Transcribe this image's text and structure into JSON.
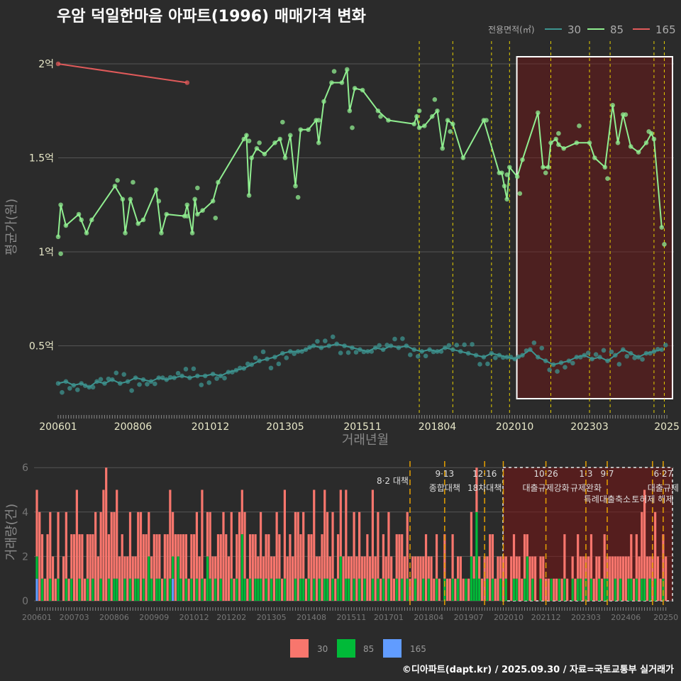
{
  "title": "우암 덕일한마음 아파트(1996) 매매가격 변화",
  "legend_title": "전용면적(㎡)",
  "footer": "©디아파트(dapt.kr) / 2025.09.30 / 자료=국토교통부 실거래가",
  "colors": {
    "s30": "#3d9490",
    "s85": "#90ee90",
    "s165": "#e05a5a",
    "bar30": "#f8766d",
    "bar85": "#00ba38",
    "bar165": "#619cff",
    "policy_top": "#e6d000",
    "policy_bottom": "#e6a000"
  },
  "chart_data": [
    {
      "type": "line",
      "title": "우암 덕일한마음 아파트(1996) 매매가격 변화",
      "xlabel": "거래년월",
      "ylabel": "평균가(원)",
      "x_note": "month index from 200601",
      "xticks": [
        {
          "i": 0,
          "label": "200601"
        },
        {
          "i": 29,
          "label": "200806"
        },
        {
          "i": 59,
          "label": "201012"
        },
        {
          "i": 88,
          "label": "201305"
        },
        {
          "i": 118,
          "label": "201511"
        },
        {
          "i": 147,
          "label": "201804"
        },
        {
          "i": 177,
          "label": "202010"
        },
        {
          "i": 206,
          "label": "202303"
        },
        {
          "i": 236,
          "label": "2025"
        }
      ],
      "yticks": [
        {
          "v": 0.5,
          "label": "0.5억"
        },
        {
          "v": 1,
          "label": "1억"
        },
        {
          "v": 1.5,
          "label": "1.5억"
        },
        {
          "v": 2,
          "label": "2억"
        }
      ],
      "ylim": [
        0.12,
        2.1
      ],
      "legend": [
        {
          "name": "30"
        },
        {
          "name": "85"
        },
        {
          "name": "165"
        }
      ],
      "series": [
        {
          "name": "165",
          "points": [
            [
              0,
              2.0
            ],
            [
              50,
              1.9
            ]
          ]
        },
        {
          "name": "85",
          "points": [
            [
              0,
              1.08
            ],
            [
              1,
              1.25
            ],
            [
              3,
              1.14
            ],
            [
              8,
              1.2
            ],
            [
              11,
              1.1
            ],
            [
              13,
              1.17
            ],
            [
              22,
              1.35
            ],
            [
              25,
              1.28
            ],
            [
              26,
              1.1
            ],
            [
              28,
              1.28
            ],
            [
              31,
              1.15
            ],
            [
              33,
              1.17
            ],
            [
              38,
              1.33
            ],
            [
              40,
              1.1
            ],
            [
              42,
              1.2
            ],
            [
              49,
              1.19
            ],
            [
              50,
              1.25
            ],
            [
              52,
              1.1
            ],
            [
              53,
              1.28
            ],
            [
              54,
              1.2
            ],
            [
              56,
              1.22
            ],
            [
              60,
              1.27
            ],
            [
              62,
              1.37
            ],
            [
              72,
              1.6
            ],
            [
              73,
              1.62
            ],
            [
              74,
              1.3
            ],
            [
              75,
              1.5
            ],
            [
              77,
              1.55
            ],
            [
              80,
              1.52
            ],
            [
              84,
              1.58
            ],
            [
              86,
              1.6
            ],
            [
              88,
              1.5
            ],
            [
              90,
              1.62
            ],
            [
              92,
              1.35
            ],
            [
              94,
              1.65
            ],
            [
              97,
              1.65
            ],
            [
              100,
              1.7
            ],
            [
              101,
              1.58
            ],
            [
              103,
              1.8
            ],
            [
              106,
              1.9
            ],
            [
              110,
              1.9
            ],
            [
              112,
              1.97
            ],
            [
              113,
              1.75
            ],
            [
              115,
              1.87
            ],
            [
              118,
              1.86
            ],
            [
              124,
              1.75
            ],
            [
              128,
              1.7
            ],
            [
              138,
              1.68
            ],
            [
              139,
              1.72
            ],
            [
              140,
              1.66
            ],
            [
              142,
              1.67
            ],
            [
              145,
              1.72
            ],
            [
              147,
              1.75
            ],
            [
              149,
              1.55
            ],
            [
              151,
              1.7
            ],
            [
              153,
              1.68
            ],
            [
              157,
              1.5
            ],
            [
              165,
              1.7
            ],
            [
              171,
              1.42
            ],
            [
              172,
              1.42
            ],
            [
              173,
              1.35
            ],
            [
              174,
              1.28
            ],
            [
              175,
              1.45
            ],
            [
              178,
              1.4
            ],
            [
              180,
              1.49
            ],
            [
              186,
              1.74
            ],
            [
              188,
              1.45
            ],
            [
              190,
              1.45
            ],
            [
              191,
              1.58
            ],
            [
              193,
              1.6
            ],
            [
              194,
              1.57
            ],
            [
              196,
              1.55
            ],
            [
              201,
              1.58
            ],
            [
              206,
              1.58
            ],
            [
              208,
              1.5
            ],
            [
              212,
              1.45
            ],
            [
              215,
              1.78
            ],
            [
              217,
              1.58
            ],
            [
              219,
              1.73
            ],
            [
              222,
              1.56
            ],
            [
              225,
              1.53
            ],
            [
              228,
              1.58
            ],
            [
              230,
              1.63
            ],
            [
              231,
              1.6
            ],
            [
              234,
              1.13
            ]
          ]
        },
        {
          "name": "30",
          "step": 3,
          "values": [
            0.3,
            0.31,
            0.29,
            0.3,
            0.28,
            0.31,
            0.3,
            0.32,
            0.3,
            0.31,
            0.33,
            0.32,
            0.31,
            0.33,
            0.32,
            0.33,
            0.34,
            0.33,
            0.34,
            0.34,
            0.35,
            0.34,
            0.36,
            0.37,
            0.38,
            0.4,
            0.42,
            0.43,
            0.44,
            0.46,
            0.47,
            0.47,
            0.48,
            0.5,
            0.49,
            0.5,
            0.51,
            0.5,
            0.49,
            0.48,
            0.47,
            0.49,
            0.48,
            0.5,
            0.49,
            0.5,
            0.48,
            0.47,
            0.48,
            0.47,
            0.49,
            0.48,
            0.47,
            0.46,
            0.45,
            0.44,
            0.46,
            0.45,
            0.44,
            0.43,
            0.45,
            0.48,
            0.44,
            0.42,
            0.4,
            0.41,
            0.42,
            0.44,
            0.45,
            0.43,
            0.44,
            0.42,
            0.45,
            0.48,
            0.46,
            0.44,
            0.46,
            0.47,
            0.48
          ]
        }
      ],
      "highlight": {
        "from": 177,
        "to": 236
      }
    },
    {
      "type": "bar",
      "ylabel": "거래량(건)",
      "stacked": true,
      "xticks": [
        {
          "i": 0,
          "label": "200601"
        },
        {
          "i": 14,
          "label": "200703"
        },
        {
          "i": 29,
          "label": "200806"
        },
        {
          "i": 44,
          "label": "200909"
        },
        {
          "i": 59,
          "label": "201012"
        },
        {
          "i": 73,
          "label": "201202"
        },
        {
          "i": 88,
          "label": "201305"
        },
        {
          "i": 103,
          "label": "201408"
        },
        {
          "i": 118,
          "label": "201511"
        },
        {
          "i": 132,
          "label": "201701"
        },
        {
          "i": 147,
          "label": "201804"
        },
        {
          "i": 162,
          "label": "201907"
        },
        {
          "i": 177,
          "label": "202010"
        },
        {
          "i": 191,
          "label": "202112"
        },
        {
          "i": 206,
          "label": "202303"
        },
        {
          "i": 221,
          "label": "202406"
        },
        {
          "i": 236,
          "label": "20250"
        }
      ],
      "yticks": [
        0,
        2,
        4,
        6
      ],
      "ylim": [
        0,
        6
      ],
      "legend": [
        {
          "name": "30"
        },
        {
          "name": "85"
        },
        {
          "name": "165"
        }
      ],
      "series": [
        {
          "name": "30",
          "values": [
            3,
            4,
            2,
            1,
            3,
            3,
            2,
            1,
            3,
            0,
            2,
            3,
            1,
            2,
            3,
            5,
            2,
            3,
            1,
            2,
            3,
            2,
            4,
            2,
            3,
            5,
            6,
            2,
            4,
            3,
            4,
            2,
            3,
            1,
            2,
            3,
            2,
            1,
            3,
            4,
            2,
            3,
            2,
            1,
            3,
            2,
            2,
            1,
            2,
            3,
            4,
            2,
            3,
            1,
            2,
            3,
            2,
            1,
            2,
            3,
            3,
            2,
            4,
            1,
            2,
            3,
            2,
            1,
            3,
            2,
            4,
            3,
            2,
            3,
            1,
            2,
            4,
            2,
            3,
            1,
            2,
            3,
            2,
            1,
            3,
            2,
            2,
            3,
            1,
            2,
            3,
            2,
            1,
            4,
            2,
            3,
            2,
            3,
            4,
            2,
            3,
            1,
            2,
            3,
            4,
            2,
            1,
            3,
            4,
            3,
            2,
            3,
            1,
            2,
            3,
            2,
            4,
            1,
            2,
            3,
            2,
            3,
            2,
            1,
            3,
            2,
            4,
            2,
            3,
            1,
            2,
            2,
            3,
            2,
            1,
            2,
            3,
            2,
            2,
            3,
            1,
            2,
            1,
            2,
            2,
            1,
            3,
            1,
            2,
            1,
            2,
            1,
            0,
            2,
            1,
            1,
            2,
            1,
            1,
            2,
            1,
            0,
            1,
            2,
            1,
            2,
            1,
            1,
            2,
            1,
            3,
            2,
            1,
            2,
            1,
            2,
            1,
            0,
            2,
            2,
            1,
            2,
            1,
            2,
            1,
            2,
            1,
            2,
            0,
            1,
            2,
            1,
            1,
            0,
            1,
            1,
            0,
            1,
            2,
            1,
            0,
            1,
            1,
            2,
            1,
            2,
            1,
            2,
            2,
            1,
            2,
            1,
            1,
            2,
            1,
            2,
            2,
            1,
            2,
            1,
            2,
            2,
            1,
            2,
            1,
            2,
            2,
            3,
            4,
            2,
            1,
            2,
            3,
            2,
            1,
            2,
            2
          ]
        },
        {
          "name": "85",
          "values": [
            1,
            0,
            1,
            0,
            0,
            1,
            0,
            0,
            1,
            0,
            0,
            1,
            0,
            1,
            0,
            0,
            1,
            0,
            0,
            1,
            0,
            1,
            0,
            0,
            1,
            0,
            0,
            1,
            0,
            1,
            1,
            0,
            0,
            1,
            0,
            1,
            0,
            1,
            1,
            0,
            1,
            0,
            2,
            1,
            0,
            1,
            1,
            0,
            1,
            0,
            1,
            1,
            0,
            2,
            1,
            0,
            1,
            0,
            1,
            0,
            1,
            0,
            1,
            0,
            2,
            1,
            0,
            1,
            0,
            1,
            0,
            0,
            0,
            1,
            0,
            1,
            0,
            3,
            1,
            0,
            1,
            0,
            1,
            1,
            1,
            0,
            1,
            0,
            1,
            0,
            1,
            1,
            0,
            1,
            0,
            0,
            0,
            1,
            0,
            1,
            1,
            0,
            1,
            0,
            1,
            0,
            1,
            0,
            1,
            1,
            0,
            1,
            0,
            1,
            2,
            0,
            1,
            1,
            0,
            1,
            0,
            1,
            0,
            1,
            0,
            0,
            1,
            0,
            1,
            0,
            1,
            0,
            1,
            0,
            0,
            1,
            0,
            1,
            0,
            1,
            0,
            0,
            1,
            0,
            0,
            1,
            0,
            1,
            0,
            0,
            1,
            0,
            0,
            1,
            0,
            0,
            1,
            0,
            1,
            0,
            0,
            1,
            0,
            2,
            1,
            4,
            1,
            0,
            0,
            1,
            0,
            1,
            0,
            0,
            1,
            0,
            1,
            0,
            0,
            1,
            1,
            0,
            0,
            1,
            2,
            0,
            1,
            0,
            0,
            1,
            0,
            0,
            0,
            1,
            0,
            0,
            1,
            0,
            1,
            0,
            0,
            1,
            0,
            1,
            1,
            0,
            1,
            0,
            1,
            0,
            0,
            1,
            0,
            1,
            1,
            0,
            0,
            1,
            0,
            1,
            0,
            0,
            1,
            1,
            0,
            1,
            0,
            1,
            1,
            0,
            1,
            0,
            1,
            0,
            0,
            1,
            0
          ]
        },
        {
          "name": "165",
          "sparse": [
            [
              0,
              1
            ],
            [
              51,
              1
            ]
          ]
        }
      ],
      "policies": [
        {
          "i": 140,
          "date": "8·2 대책",
          "label": ""
        },
        {
          "i": 153,
          "date": "9·13",
          "label": "종합대책"
        },
        {
          "i": 168,
          "date": "12·16",
          "label": "18차대책"
        },
        {
          "i": 175,
          "date": "",
          "label": ""
        },
        {
          "i": 191,
          "date": "10·26",
          "label": "대출규제강화"
        },
        {
          "i": 206,
          "date": "1·3",
          "label": "규제완화"
        },
        {
          "i": 214,
          "date": "9·7",
          "label": "특례대출축소"
        },
        {
          "i": 231,
          "date": "",
          "label": "토허제 해제"
        },
        {
          "i": 235,
          "date": "6·27",
          "label": "대출규제"
        }
      ]
    }
  ]
}
